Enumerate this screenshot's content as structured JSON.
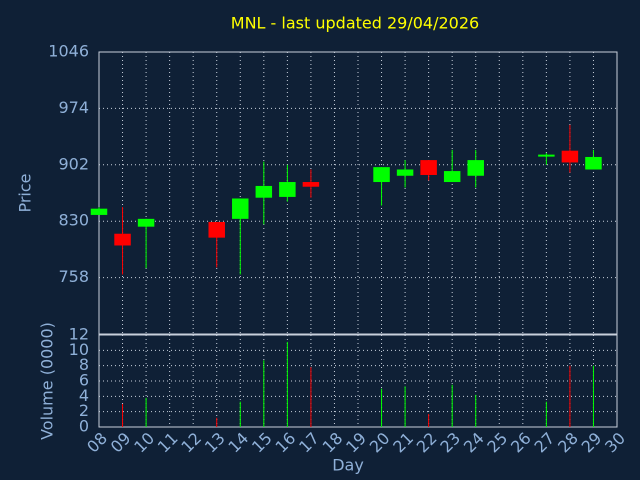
{
  "chart_data": [
    {
      "type": "candlestick",
      "title": "MNL - last updated 29/04/2026",
      "ylabel": "Price",
      "x": [
        8,
        9,
        10,
        13,
        14,
        15,
        16,
        17,
        20,
        21,
        22,
        23,
        24,
        27,
        28,
        29
      ],
      "open": [
        838,
        814,
        823,
        829,
        833,
        860,
        861,
        880,
        880,
        888,
        908,
        880,
        888,
        914,
        920,
        896
      ],
      "high": [
        848,
        848,
        833,
        829,
        859,
        906,
        902,
        896,
        899,
        908,
        908,
        921,
        921,
        917,
        953,
        921
      ],
      "low": [
        838,
        762,
        770,
        771,
        762,
        826,
        855,
        860,
        850,
        873,
        882,
        880,
        873,
        902,
        892,
        896
      ],
      "close": [
        846,
        799,
        833,
        809,
        859,
        875,
        880,
        874,
        899,
        896,
        889,
        894,
        908,
        915,
        905,
        912
      ],
      "up_color": "#00ff00",
      "down_color": "#ff0000",
      "xlim": [
        8,
        30
      ],
      "ylim": [
        686,
        1046
      ],
      "yticks": [
        758,
        830,
        902,
        974,
        1046
      ],
      "grid": true
    },
    {
      "type": "bar",
      "ylabel": "Volume (0000)",
      "xlabel": "Day",
      "x": [
        8,
        9,
        10,
        13,
        14,
        15,
        16,
        17,
        20,
        21,
        22,
        23,
        24,
        27,
        28,
        29
      ],
      "values": [
        null,
        3.0,
        3.8,
        1.2,
        3.3,
        8.7,
        11.1,
        7.8,
        5.0,
        5.3,
        1.7,
        5.5,
        4.2,
        3.3,
        8.0,
        8.0
      ],
      "xlim": [
        8,
        30
      ],
      "ylim": [
        0,
        12
      ],
      "yticks": [
        0,
        2,
        4,
        6,
        8,
        10,
        12
      ],
      "xticks": [
        {
          "value": 8,
          "label": "08"
        },
        {
          "value": 9,
          "label": "09"
        },
        10,
        11,
        12,
        13,
        14,
        15,
        16,
        17,
        18,
        19,
        20,
        21,
        22,
        23,
        24,
        25,
        26,
        27,
        28,
        29,
        30
      ],
      "grid": true
    }
  ]
}
